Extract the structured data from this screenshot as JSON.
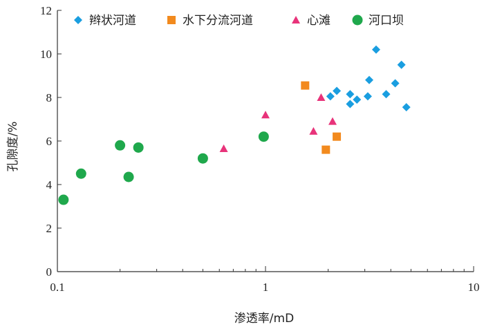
{
  "chart_data": {
    "type": "scatter",
    "xscale": "log",
    "xlim": [
      0.1,
      10
    ],
    "ylim": [
      0,
      12
    ],
    "xticks": [
      0.1,
      1,
      10
    ],
    "xtick_labels": [
      "0.1",
      "1",
      "10"
    ],
    "yticks": [
      0,
      2,
      4,
      6,
      8,
      10,
      12
    ],
    "ytick_labels": [
      "0",
      "2",
      "4",
      "6",
      "8",
      "10",
      "12"
    ],
    "xlabel": "渗透率/mD",
    "ylabel": "孔隙度/%",
    "grid": false,
    "legend_position": "top",
    "series": [
      {
        "name": "辫状河道",
        "marker": "diamond",
        "color": "#1a9ee0",
        "points": [
          [
            3.4,
            10.2
          ],
          [
            4.5,
            9.5
          ],
          [
            3.15,
            8.8
          ],
          [
            4.2,
            8.65
          ],
          [
            2.2,
            8.3
          ],
          [
            2.05,
            8.05
          ],
          [
            2.55,
            8.15
          ],
          [
            3.8,
            8.15
          ],
          [
            3.1,
            8.05
          ],
          [
            2.75,
            7.9
          ],
          [
            2.55,
            7.7
          ],
          [
            4.75,
            7.55
          ]
        ]
      },
      {
        "name": "水下分流河道",
        "marker": "square",
        "color": "#f28a1e",
        "points": [
          [
            1.55,
            8.55
          ],
          [
            2.2,
            6.2
          ],
          [
            1.95,
            5.6
          ]
        ]
      },
      {
        "name": "心滩",
        "marker": "triangle",
        "color": "#e8337a",
        "points": [
          [
            1.0,
            7.2
          ],
          [
            1.85,
            8.0
          ],
          [
            2.1,
            6.9
          ],
          [
            1.7,
            6.45
          ],
          [
            0.63,
            5.65
          ]
        ]
      },
      {
        "name": "河口坝",
        "marker": "circle",
        "color": "#1fa84c",
        "points": [
          [
            0.98,
            6.2
          ],
          [
            0.2,
            5.8
          ],
          [
            0.245,
            5.7
          ],
          [
            0.5,
            5.2
          ],
          [
            0.13,
            4.5
          ],
          [
            0.22,
            4.35
          ],
          [
            0.107,
            3.3
          ]
        ]
      }
    ]
  }
}
